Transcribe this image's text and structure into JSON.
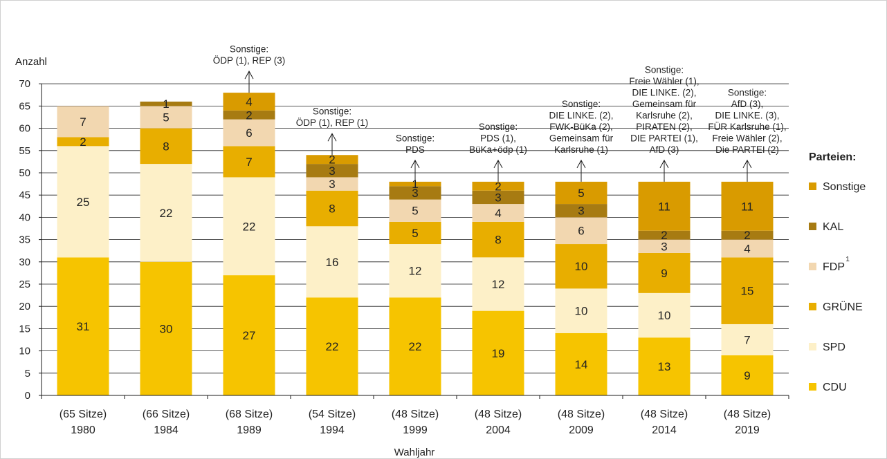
{
  "chart_data": {
    "type": "bar",
    "stacked": true,
    "ylabel": "Anzahl",
    "xlabel": "Wahljahr",
    "ylim": [
      0,
      70
    ],
    "ytick_step": 5,
    "grid": true,
    "legend_title": "Parteien:",
    "legend_position": "right",
    "categories": [
      "1980",
      "1984",
      "1989",
      "1994",
      "1999",
      "2004",
      "2009",
      "2014",
      "2019"
    ],
    "seats": [
      "(65 Sitze)",
      "(66 Sitze)",
      "(68 Sitze)",
      "(54 Sitze)",
      "(48 Sitze)",
      "(48 Sitze)",
      "(48 Sitze)",
      "(48 Sitze)",
      "(48 Sitze)"
    ],
    "series": [
      {
        "name": "CDU",
        "color": "#F6C400",
        "values": [
          31,
          30,
          27,
          22,
          22,
          19,
          14,
          13,
          9
        ]
      },
      {
        "name": "SPD",
        "color": "#FDF0C8",
        "values": [
          25,
          22,
          22,
          16,
          12,
          12,
          10,
          10,
          7
        ]
      },
      {
        "name": "GRÜNE",
        "color": "#E8AE00",
        "values": [
          2,
          8,
          7,
          8,
          5,
          8,
          10,
          9,
          15
        ]
      },
      {
        "name": "FDP",
        "legend_sup": "1",
        "color": "#F2D7B0",
        "values": [
          7,
          5,
          6,
          3,
          5,
          4,
          6,
          3,
          4
        ]
      },
      {
        "name": "KAL",
        "color": "#A77B12",
        "values": [
          0,
          1,
          2,
          3,
          3,
          3,
          3,
          2,
          2
        ]
      },
      {
        "name": "Sonstige",
        "color": "#D99B00",
        "values": [
          0,
          0,
          4,
          2,
          1,
          2,
          5,
          11,
          11
        ]
      }
    ],
    "annotations": [
      {
        "category": "1989",
        "lines": [
          "Sonstige:",
          "ÖDP (1), REP (3)"
        ]
      },
      {
        "category": "1994",
        "lines": [
          "Sonstige:",
          "ÖDP (1), REP (1)"
        ]
      },
      {
        "category": "1999",
        "lines": [
          "Sonstige:",
          "PDS"
        ]
      },
      {
        "category": "2004",
        "lines": [
          "Sonstige:",
          "PDS (1),",
          "BüKa+ödp (1)"
        ]
      },
      {
        "category": "2009",
        "lines": [
          "Sonstige:",
          "DIE LINKE. (2),",
          "FWK-BüKa (2),",
          "Gemeinsam für",
          "Karlsruhe (1)"
        ]
      },
      {
        "category": "2014",
        "lines": [
          "Sonstige:",
          "Freie Wähler (1),",
          "DIE LINKE. (2),",
          "Gemeinsam für",
          "Karlsruhe (2),",
          "PIRATEN (2),",
          "DIE PARTEI (1),",
          "AfD (3)"
        ]
      },
      {
        "category": "2019",
        "lines": [
          "Sonstige:",
          "AfD (3),",
          "DIE LINKE. (3),",
          "FÜR Karlsruhe (1),",
          "Freie Wähler (2),",
          "Die PARTEI (2)"
        ]
      }
    ]
  }
}
